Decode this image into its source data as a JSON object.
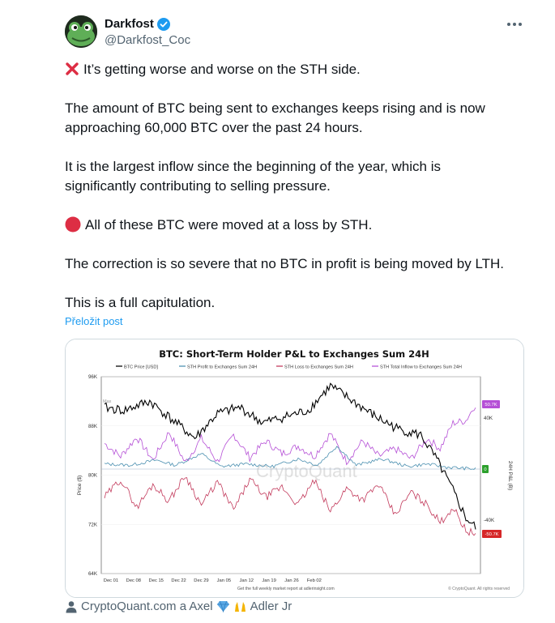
{
  "author": {
    "name": "Darkfost",
    "handle": "@Darkfost_Coc"
  },
  "text": {
    "line1": "It’s getting worse and worse on the STH side.",
    "para2_a": "The amount of BTC being sent to exchanges keeps rising and is now",
    "para2_b": "approaching 60,000 BTC over the past 24 hours.",
    "para3_a": "It is the largest inflow since the beginning of the year, which is",
    "para3_b": "significantly contributing to selling pressure.",
    "para4": "All of these BTC were moved at a loss by STH.",
    "para5": "The correction is so severe that no BTC in profit is being moved by LTH.",
    "para6": "This is a full capitulation."
  },
  "translate_label": "Přeložit post",
  "tags_text": "CryptoQuant.com a Axel",
  "tags_text2": "Adler Jr",
  "icons": {
    "cross": "cross-mark-icon",
    "red_circle": "red-circle-icon",
    "verified": "verified-badge-icon",
    "person": "person-icon",
    "diamond": "gem-icon",
    "hands": "raising-hands-icon"
  },
  "colors": {
    "verified": "#1d9bf0",
    "price": "#000000",
    "profit": "#4a8fb0",
    "loss": "#c2385a",
    "total": "#b54fd6",
    "tag_top": "#b54fd6",
    "tag_zero": "#2ca02c",
    "tag_bottom": "#d62728"
  },
  "chart_data": {
    "type": "line",
    "title": "BTC: Short-Term Holder P&L to Exchanges Sum 24H",
    "legend": [
      "BTC Price [USD]",
      "STH Profit to Exchanges Sum 24H",
      "STH Loss to Exchanges Sum 24H",
      "STH Total Inflow to Exchanges Sum 24H"
    ],
    "legend_placement": "top",
    "xlabels": [
      "Dec 01",
      "Dec 08",
      "Dec 15",
      "Dec 22",
      "Dec 29",
      "Jan 05",
      "Jan 12",
      "Jan 19",
      "Jan 26",
      "Feb 02"
    ],
    "ylabel_left": "Price ($)",
    "yticks_left": [
      "96K",
      "88K",
      "80K",
      "72K",
      "64K"
    ],
    "ylim_left": [
      64000,
      96000
    ],
    "ylabel_right": "24H P&L (B)",
    "yticks_right": [
      "40K",
      "0",
      "-40K"
    ],
    "right_tags": [
      "50.7K",
      "0",
      "-50.7K"
    ],
    "max_label": "Max",
    "watermark": "CryptoQuant",
    "footer_note": "Get the full weekly market report at adlerinsight.com",
    "copyright": "© CryptoQuant. All rights reserved",
    "price_anchors": [
      [
        0,
        91000
      ],
      [
        6,
        90500
      ],
      [
        14,
        92000
      ],
      [
        21,
        89000
      ],
      [
        28,
        86000
      ],
      [
        35,
        90000
      ],
      [
        42,
        91000
      ],
      [
        49,
        88500
      ],
      [
        56,
        89500
      ],
      [
        63,
        90500
      ],
      [
        70,
        94500
      ],
      [
        77,
        92000
      ],
      [
        84,
        89500
      ],
      [
        91,
        87500
      ],
      [
        98,
        86500
      ],
      [
        103,
        82500
      ],
      [
        108,
        77500
      ],
      [
        112,
        73000
      ],
      [
        115,
        71500
      ]
    ],
    "total_anchors": [
      [
        0,
        20000
      ],
      [
        5,
        10000
      ],
      [
        10,
        25000
      ],
      [
        15,
        7000
      ],
      [
        20,
        29000
      ],
      [
        25,
        5000
      ],
      [
        30,
        24000
      ],
      [
        35,
        6000
      ],
      [
        40,
        27000
      ],
      [
        45,
        9000
      ],
      [
        50,
        22000
      ],
      [
        55,
        12000
      ],
      [
        60,
        18000
      ],
      [
        65,
        10000
      ],
      [
        70,
        28000
      ],
      [
        75,
        6000
      ],
      [
        80,
        22000
      ],
      [
        85,
        10000
      ],
      [
        90,
        16000
      ],
      [
        95,
        8000
      ],
      [
        100,
        24000
      ],
      [
        104,
        16000
      ],
      [
        108,
        36000
      ],
      [
        112,
        38000
      ],
      [
        115,
        50700
      ]
    ],
    "profit_anchors": [
      [
        0,
        4000
      ],
      [
        8,
        3000
      ],
      [
        16,
        7000
      ],
      [
        22,
        3000
      ],
      [
        30,
        12000
      ],
      [
        36,
        2000
      ],
      [
        44,
        4000
      ],
      [
        52,
        2000
      ],
      [
        60,
        8000
      ],
      [
        66,
        3000
      ],
      [
        72,
        18000
      ],
      [
        78,
        3000
      ],
      [
        86,
        8000
      ],
      [
        94,
        2000
      ],
      [
        100,
        4000
      ],
      [
        106,
        1500
      ],
      [
        115,
        0
      ]
    ],
    "loss_anchors": [
      [
        0,
        -22000
      ],
      [
        5,
        -8000
      ],
      [
        10,
        -30000
      ],
      [
        15,
        -12000
      ],
      [
        20,
        -25000
      ],
      [
        25,
        -5000
      ],
      [
        30,
        -28000
      ],
      [
        35,
        -10000
      ],
      [
        40,
        -32000
      ],
      [
        45,
        -8000
      ],
      [
        50,
        -22000
      ],
      [
        55,
        -14000
      ],
      [
        60,
        -28000
      ],
      [
        65,
        -9000
      ],
      [
        70,
        -33000
      ],
      [
        75,
        -15000
      ],
      [
        80,
        -24000
      ],
      [
        85,
        -12000
      ],
      [
        90,
        -36000
      ],
      [
        95,
        -18000
      ],
      [
        100,
        -28000
      ],
      [
        104,
        -42000
      ],
      [
        108,
        -30000
      ],
      [
        112,
        -48000
      ],
      [
        115,
        -50700
      ]
    ],
    "n_days": 115
  }
}
